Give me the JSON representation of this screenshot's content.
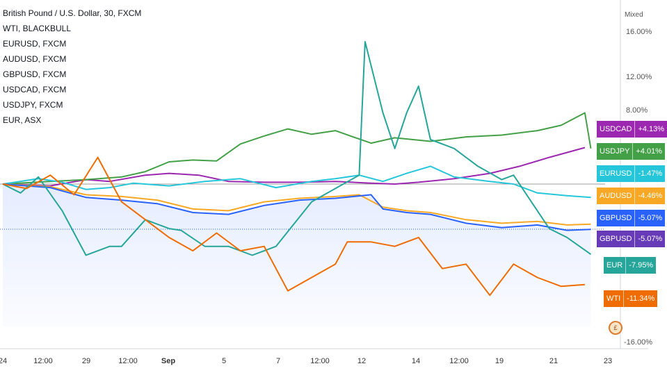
{
  "chart_data": {
    "type": "line",
    "title": "British Pound / U.S. Dollar, 30, FXCM",
    "scale_mode": "Mixed",
    "y_axis_ticks": [
      "16.00%",
      "12.00%",
      "8.00%",
      "-16.00%"
    ],
    "y_unit": "percent change",
    "x_ticks": [
      "24",
      "12:00",
      "29",
      "12:00",
      "Sep",
      "5",
      "7",
      "12:00",
      "12",
      "14",
      "12:00",
      "19",
      "21",
      "23"
    ],
    "legend": [
      "WTI, BLACKBULL",
      "EURUSD, FXCM",
      "AUDUSD, FXCM",
      "GBPUSD, FXCM",
      "USDCAD, FXCM",
      "USDJPY, FXCM",
      "EUR, ASX"
    ],
    "grid": false,
    "series": [
      {
        "name": "USDCAD",
        "label": "+4.13%",
        "color": "#9c27b0",
        "points": [
          [
            0,
            0.0
          ],
          [
            8,
            -0.2
          ],
          [
            14,
            0.5
          ],
          [
            18,
            0.3
          ],
          [
            24,
            1.0
          ],
          [
            28,
            1.2
          ],
          [
            33,
            1.0
          ],
          [
            38,
            0.3
          ],
          [
            44,
            0.2
          ],
          [
            50,
            0.2
          ],
          [
            56,
            0.3
          ],
          [
            62,
            0.1
          ],
          [
            66,
            0.0
          ],
          [
            70,
            0.2
          ],
          [
            76,
            0.6
          ],
          [
            82,
            1.2
          ],
          [
            87,
            2.0
          ],
          [
            92,
            3.0
          ],
          [
            98,
            4.1
          ]
        ]
      },
      {
        "name": "USDJPY",
        "label": "+4.01%",
        "color": "#43a047",
        "points": [
          [
            0,
            0.0
          ],
          [
            8,
            0.3
          ],
          [
            14,
            0.5
          ],
          [
            20,
            0.8
          ],
          [
            24,
            1.4
          ],
          [
            28,
            2.5
          ],
          [
            32,
            2.7
          ],
          [
            36,
            2.6
          ],
          [
            40,
            4.5
          ],
          [
            44,
            5.4
          ],
          [
            48,
            6.2
          ],
          [
            52,
            5.6
          ],
          [
            56,
            6.0
          ],
          [
            62,
            4.6
          ],
          [
            66,
            5.2
          ],
          [
            72,
            4.8
          ],
          [
            78,
            5.3
          ],
          [
            84,
            5.5
          ],
          [
            90,
            6.0
          ],
          [
            94,
            6.6
          ],
          [
            98,
            8.0
          ],
          [
            99,
            4.0
          ]
        ]
      },
      {
        "name": "EURUSD",
        "label": "-1.47%",
        "color": "#26c6da",
        "points": [
          [
            0,
            0.0
          ],
          [
            6,
            0.6
          ],
          [
            10,
            0.2
          ],
          [
            14,
            -0.6
          ],
          [
            18,
            -0.4
          ],
          [
            22,
            0.1
          ],
          [
            28,
            -0.2
          ],
          [
            34,
            0.3
          ],
          [
            40,
            0.6
          ],
          [
            46,
            -0.4
          ],
          [
            52,
            0.3
          ],
          [
            56,
            0.6
          ],
          [
            60,
            1.0
          ],
          [
            64,
            0.3
          ],
          [
            68,
            1.2
          ],
          [
            72,
            2.0
          ],
          [
            76,
            0.8
          ],
          [
            82,
            0.3
          ],
          [
            86,
            0.0
          ],
          [
            90,
            -1.0
          ],
          [
            95,
            -1.3
          ],
          [
            99,
            -1.5
          ]
        ]
      },
      {
        "name": "AUDUSD",
        "label": "-4.46%",
        "color": "#f9a825",
        "points": [
          [
            0,
            0.0
          ],
          [
            8,
            -0.3
          ],
          [
            14,
            -1.2
          ],
          [
            20,
            -1.4
          ],
          [
            26,
            -1.8
          ],
          [
            32,
            -2.8
          ],
          [
            38,
            -3.0
          ],
          [
            44,
            -2.0
          ],
          [
            50,
            -1.6
          ],
          [
            56,
            -1.4
          ],
          [
            60,
            -1.2
          ],
          [
            64,
            -2.6
          ],
          [
            68,
            -3.0
          ],
          [
            72,
            -3.2
          ],
          [
            78,
            -4.0
          ],
          [
            84,
            -4.4
          ],
          [
            90,
            -4.2
          ],
          [
            95,
            -4.6
          ],
          [
            99,
            -4.5
          ]
        ]
      },
      {
        "name": "GBPUSD",
        "label": "-5.07%",
        "color": "#2962ff",
        "points": [
          [
            0,
            0.0
          ],
          [
            8,
            -0.4
          ],
          [
            14,
            -1.5
          ],
          [
            20,
            -1.8
          ],
          [
            26,
            -2.2
          ],
          [
            32,
            -3.2
          ],
          [
            38,
            -3.4
          ],
          [
            44,
            -2.4
          ],
          [
            50,
            -1.8
          ],
          [
            56,
            -1.6
          ],
          [
            62,
            -1.2
          ],
          [
            64,
            -2.8
          ],
          [
            68,
            -3.2
          ],
          [
            72,
            -3.4
          ],
          [
            78,
            -4.4
          ],
          [
            84,
            -4.9
          ],
          [
            90,
            -4.6
          ],
          [
            95,
            -5.2
          ],
          [
            99,
            -5.1
          ]
        ]
      },
      {
        "name": "EUR",
        "label": "-7.95%",
        "color": "#26a69a",
        "points": [
          [
            0,
            0.0
          ],
          [
            3,
            -1.0
          ],
          [
            6,
            0.8
          ],
          [
            10,
            -3.0
          ],
          [
            14,
            -8.0
          ],
          [
            18,
            -7.0
          ],
          [
            20,
            -7.0
          ],
          [
            24,
            -4.0
          ],
          [
            28,
            -5.0
          ],
          [
            30,
            -5.2
          ],
          [
            34,
            -7.0
          ],
          [
            38,
            -7.0
          ],
          [
            42,
            -8.0
          ],
          [
            46,
            -7.0
          ],
          [
            52,
            -2.0
          ],
          [
            56,
            -0.5
          ],
          [
            60,
            1.0
          ],
          [
            61,
            16.0
          ],
          [
            64,
            8.0
          ],
          [
            66,
            4.0
          ],
          [
            68,
            8.0
          ],
          [
            70,
            11.0
          ],
          [
            72,
            5.0
          ],
          [
            76,
            4.0
          ],
          [
            80,
            2.0
          ],
          [
            84,
            0.5
          ],
          [
            86,
            1.0
          ],
          [
            88,
            -1.0
          ],
          [
            92,
            -5.0
          ],
          [
            95,
            -6.0
          ],
          [
            99,
            -7.9
          ]
        ]
      },
      {
        "name": "WTI",
        "label": "-11.34%",
        "color": "#ef6c00",
        "points": [
          [
            0,
            0.0
          ],
          [
            4,
            -0.5
          ],
          [
            8,
            1.0
          ],
          [
            12,
            -1.2
          ],
          [
            16,
            3.0
          ],
          [
            20,
            -2.0
          ],
          [
            24,
            -4.0
          ],
          [
            28,
            -6.0
          ],
          [
            32,
            -7.5
          ],
          [
            36,
            -5.5
          ],
          [
            40,
            -7.5
          ],
          [
            44,
            -7.0
          ],
          [
            48,
            -12.0
          ],
          [
            52,
            -10.5
          ],
          [
            56,
            -9.0
          ],
          [
            58,
            -6.5
          ],
          [
            62,
            -6.5
          ],
          [
            66,
            -7.0
          ],
          [
            70,
            -6.0
          ],
          [
            74,
            -9.5
          ],
          [
            78,
            -9.0
          ],
          [
            82,
            -12.5
          ],
          [
            86,
            -9.0
          ],
          [
            90,
            -10.5
          ],
          [
            94,
            -11.5
          ],
          [
            98,
            -11.3
          ]
        ]
      }
    ]
  }
}
